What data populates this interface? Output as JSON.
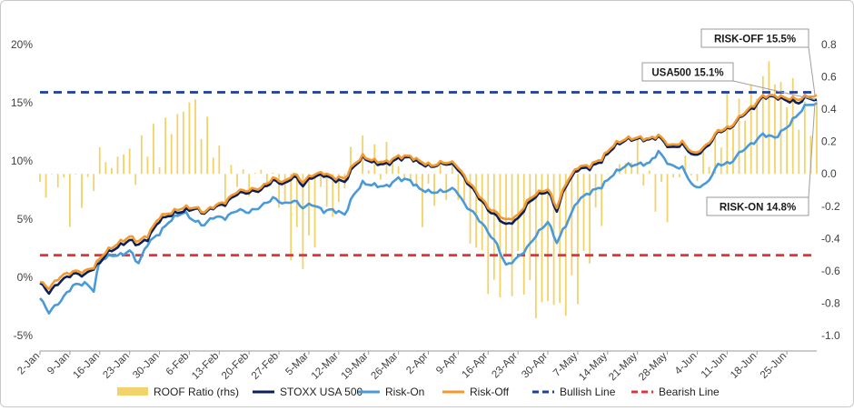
{
  "chart_data": {
    "type": "line",
    "title": "",
    "xlabel": "",
    "ylabel": "",
    "ylabel_right": "",
    "ylim_left": [
      -5,
      20
    ],
    "ylim_right": [
      -1.0,
      0.8
    ],
    "y_ticks_left": [
      "-5%",
      "0%",
      "5%",
      "10%",
      "15%",
      "20%"
    ],
    "y_ticks_right": [
      "-1.0",
      "-0.8",
      "-0.6",
      "-0.4",
      "-0.2",
      "0.0",
      "0.2",
      "0.4",
      "0.6",
      "0.8"
    ],
    "x_tick_labels": [
      "2-Jan",
      "9-Jan",
      "16-Jan",
      "23-Jan",
      "30-Jan",
      "6-Feb",
      "13-Feb",
      "20-Feb",
      "27-Feb",
      "5-Mar",
      "12-Mar",
      "19-Mar",
      "26-Mar",
      "2-Apr",
      "9-Apr",
      "16-Apr",
      "23-Apr",
      "30-Apr",
      "7-May",
      "14-May",
      "21-May",
      "28-May",
      "4-Jun",
      "11-Jun",
      "18-Jun",
      "25-Jun"
    ],
    "grid": false,
    "legend_position": "bottom",
    "series": [
      {
        "name": "ROOF Ratio (rhs)",
        "kind": "bar",
        "axis": "right",
        "color": "#F2D26B"
      },
      {
        "name": "STOXX USA 500",
        "kind": "line",
        "axis": "left",
        "color": "#0B1F5C"
      },
      {
        "name": "Risk-On",
        "kind": "line",
        "axis": "left",
        "color": "#4A9AD8"
      },
      {
        "name": "Risk-Off",
        "kind": "line",
        "axis": "left",
        "color": "#F39A2E"
      },
      {
        "name": "Bullish Line",
        "kind": "hline",
        "axis": "left",
        "value": 15.9,
        "color": "#1F3F9E",
        "dash": true
      },
      {
        "name": "Bearish Line",
        "kind": "hline",
        "axis": "left",
        "value": 1.9,
        "color": "#E0343D",
        "dash": true
      }
    ],
    "anchors": {
      "stoxx": [
        [
          0,
          -0.5
        ],
        [
          3,
          -1.3
        ],
        [
          7,
          -0.3
        ],
        [
          11,
          0.3
        ],
        [
          15,
          0.2
        ],
        [
          18,
          0.8
        ],
        [
          20,
          1.2
        ],
        [
          22,
          2.0
        ],
        [
          26,
          2.6
        ],
        [
          30,
          3.2
        ],
        [
          33,
          2.8
        ],
        [
          36,
          3.3
        ],
        [
          40,
          4.9
        ],
        [
          44,
          5.4
        ],
        [
          48,
          5.7
        ],
        [
          52,
          5.9
        ],
        [
          55,
          5.5
        ],
        [
          58,
          6.0
        ],
        [
          62,
          6.3
        ],
        [
          66,
          7.2
        ],
        [
          70,
          7.3
        ],
        [
          74,
          7.5
        ],
        [
          78,
          8.3
        ],
        [
          82,
          8.0
        ],
        [
          85,
          8.7
        ],
        [
          88,
          7.9
        ],
        [
          91,
          8.6
        ],
        [
          95,
          8.8
        ],
        [
          98,
          8.4
        ],
        [
          102,
          8.2
        ],
        [
          105,
          9.5
        ],
        [
          108,
          10.3
        ],
        [
          112,
          9.8
        ],
        [
          116,
          9.7
        ],
        [
          120,
          10.2
        ],
        [
          124,
          10.3
        ],
        [
          127,
          9.8
        ],
        [
          131,
          9.5
        ],
        [
          135,
          9.8
        ],
        [
          139,
          9.6
        ],
        [
          142,
          8.5
        ],
        [
          146,
          7.2
        ],
        [
          150,
          5.8
        ],
        [
          153,
          5.2
        ],
        [
          156,
          4.5
        ],
        [
          160,
          5.0
        ],
        [
          163,
          6.2
        ],
        [
          166,
          7.0
        ],
        [
          170,
          7.4
        ],
        [
          173,
          5.7
        ],
        [
          176,
          7.9
        ],
        [
          180,
          9.3
        ],
        [
          184,
          9.4
        ],
        [
          188,
          10.0
        ],
        [
          192,
          11.2
        ],
        [
          196,
          11.8
        ],
        [
          200,
          11.9
        ],
        [
          204,
          11.8
        ],
        [
          207,
          12.1
        ],
        [
          211,
          11.1
        ],
        [
          215,
          11.4
        ],
        [
          219,
          10.4
        ],
        [
          223,
          11.1
        ],
        [
          227,
          12.5
        ],
        [
          231,
          12.8
        ],
        [
          235,
          13.9
        ],
        [
          239,
          14.6
        ],
        [
          242,
          15.5
        ],
        [
          246,
          15.5
        ],
        [
          250,
          15.2
        ],
        [
          254,
          15.0
        ],
        [
          257,
          15.5
        ],
        [
          260,
          15.1
        ]
      ],
      "riskon": [
        [
          0,
          -1.8
        ],
        [
          3,
          -3.0
        ],
        [
          7,
          -2.0
        ],
        [
          11,
          -0.7
        ],
        [
          15,
          -0.5
        ],
        [
          18,
          -1.1
        ],
        [
          20,
          1.5
        ],
        [
          24,
          1.9
        ],
        [
          27,
          1.9
        ],
        [
          30,
          2.3
        ],
        [
          33,
          1.2
        ],
        [
          36,
          2.9
        ],
        [
          40,
          3.8
        ],
        [
          44,
          5.0
        ],
        [
          48,
          5.6
        ],
        [
          52,
          4.8
        ],
        [
          55,
          4.5
        ],
        [
          58,
          5.2
        ],
        [
          62,
          5.1
        ],
        [
          66,
          5.8
        ],
        [
          70,
          5.6
        ],
        [
          74,
          6.1
        ],
        [
          78,
          6.8
        ],
        [
          82,
          6.3
        ],
        [
          85,
          6.6
        ],
        [
          88,
          6.0
        ],
        [
          91,
          6.3
        ],
        [
          95,
          5.7
        ],
        [
          98,
          5.8
        ],
        [
          102,
          5.4
        ],
        [
          105,
          7.1
        ],
        [
          108,
          8.1
        ],
        [
          112,
          7.9
        ],
        [
          116,
          7.8
        ],
        [
          120,
          8.5
        ],
        [
          124,
          8.3
        ],
        [
          127,
          7.6
        ],
        [
          131,
          7.3
        ],
        [
          135,
          7.4
        ],
        [
          139,
          7.6
        ],
        [
          142,
          6.3
        ],
        [
          146,
          5.3
        ],
        [
          150,
          3.9
        ],
        [
          153,
          2.8
        ],
        [
          156,
          1.0
        ],
        [
          160,
          1.7
        ],
        [
          163,
          2.5
        ],
        [
          166,
          3.6
        ],
        [
          170,
          4.8
        ],
        [
          173,
          3.0
        ],
        [
          176,
          4.5
        ],
        [
          180,
          6.6
        ],
        [
          184,
          7.3
        ],
        [
          188,
          7.8
        ],
        [
          192,
          8.9
        ],
        [
          196,
          9.6
        ],
        [
          200,
          9.7
        ],
        [
          204,
          9.8
        ],
        [
          207,
          10.8
        ],
        [
          211,
          9.6
        ],
        [
          215,
          9.4
        ],
        [
          219,
          7.7
        ],
        [
          223,
          8.0
        ],
        [
          227,
          9.7
        ],
        [
          231,
          9.8
        ],
        [
          235,
          10.9
        ],
        [
          239,
          11.6
        ],
        [
          242,
          12.3
        ],
        [
          246,
          12.0
        ],
        [
          250,
          12.9
        ],
        [
          254,
          14.1
        ],
        [
          257,
          14.9
        ],
        [
          260,
          14.8
        ]
      ],
      "riskoff": [
        [
          0,
          -0.4
        ],
        [
          3,
          -0.9
        ],
        [
          7,
          0.1
        ],
        [
          11,
          0.5
        ],
        [
          15,
          0.5
        ],
        [
          18,
          0.9
        ],
        [
          20,
          1.6
        ],
        [
          22,
          2.2
        ],
        [
          26,
          2.9
        ],
        [
          30,
          3.5
        ],
        [
          33,
          3.1
        ],
        [
          36,
          3.6
        ],
        [
          40,
          5.2
        ],
        [
          44,
          5.6
        ],
        [
          48,
          6.0
        ],
        [
          52,
          6.0
        ],
        [
          55,
          5.6
        ],
        [
          58,
          6.1
        ],
        [
          62,
          6.5
        ],
        [
          66,
          7.4
        ],
        [
          70,
          7.5
        ],
        [
          74,
          7.7
        ],
        [
          78,
          8.5
        ],
        [
          82,
          8.2
        ],
        [
          85,
          8.9
        ],
        [
          88,
          8.2
        ],
        [
          91,
          8.8
        ],
        [
          95,
          9.0
        ],
        [
          98,
          8.6
        ],
        [
          102,
          8.5
        ],
        [
          105,
          9.7
        ],
        [
          108,
          10.4
        ],
        [
          112,
          10.0
        ],
        [
          116,
          9.9
        ],
        [
          120,
          10.4
        ],
        [
          124,
          10.4
        ],
        [
          127,
          10.0
        ],
        [
          131,
          9.6
        ],
        [
          135,
          9.9
        ],
        [
          139,
          9.8
        ],
        [
          142,
          8.7
        ],
        [
          146,
          7.4
        ],
        [
          150,
          6.0
        ],
        [
          153,
          5.5
        ],
        [
          156,
          4.9
        ],
        [
          160,
          5.3
        ],
        [
          163,
          6.5
        ],
        [
          166,
          7.2
        ],
        [
          170,
          7.6
        ],
        [
          173,
          6.0
        ],
        [
          176,
          8.1
        ],
        [
          180,
          9.5
        ],
        [
          184,
          9.6
        ],
        [
          188,
          10.2
        ],
        [
          192,
          11.4
        ],
        [
          196,
          11.9
        ],
        [
          200,
          12.0
        ],
        [
          204,
          11.9
        ],
        [
          207,
          12.2
        ],
        [
          211,
          11.3
        ],
        [
          215,
          11.6
        ],
        [
          219,
          10.6
        ],
        [
          223,
          11.3
        ],
        [
          227,
          12.6
        ],
        [
          231,
          12.9
        ],
        [
          235,
          14.0
        ],
        [
          239,
          14.8
        ],
        [
          242,
          15.6
        ],
        [
          246,
          15.6
        ],
        [
          250,
          15.4
        ],
        [
          254,
          15.3
        ],
        [
          257,
          15.6
        ],
        [
          260,
          15.5
        ]
      ],
      "roof": [
        [
          0,
          -0.05
        ],
        [
          3,
          -0.08
        ],
        [
          6,
          -0.02
        ],
        [
          10,
          -0.15
        ],
        [
          13,
          -0.1
        ],
        [
          16,
          -0.05
        ],
        [
          19,
          0.1
        ],
        [
          22,
          0.15
        ],
        [
          25,
          0.12
        ],
        [
          28,
          0.2
        ],
        [
          31,
          0.12
        ],
        [
          34,
          0.18
        ],
        [
          37,
          0.3
        ],
        [
          40,
          0.25
        ],
        [
          43,
          0.32
        ],
        [
          46,
          0.43
        ],
        [
          49,
          0.5
        ],
        [
          52,
          0.46
        ],
        [
          55,
          0.35
        ],
        [
          58,
          0.22
        ],
        [
          61,
          0.05
        ],
        [
          64,
          -0.04
        ],
        [
          67,
          0.03
        ],
        [
          70,
          -0.05
        ],
        [
          73,
          -0.02
        ],
        [
          76,
          0.02
        ],
        [
          79,
          -0.1
        ],
        [
          82,
          -0.3
        ],
        [
          85,
          -0.45
        ],
        [
          88,
          -0.55
        ],
        [
          91,
          -0.48
        ],
        [
          94,
          -0.2
        ],
        [
          97,
          -0.3
        ],
        [
          100,
          -0.25
        ],
        [
          103,
          -0.05
        ],
        [
          106,
          0.08
        ],
        [
          109,
          0.05
        ],
        [
          112,
          0.0
        ],
        [
          115,
          0.05
        ],
        [
          118,
          0.02
        ],
        [
          121,
          -0.05
        ],
        [
          124,
          -0.1
        ],
        [
          127,
          -0.3
        ],
        [
          130,
          -0.2
        ],
        [
          133,
          -0.15
        ],
        [
          136,
          -0.05
        ],
        [
          139,
          -0.1
        ],
        [
          142,
          -0.25
        ],
        [
          145,
          -0.45
        ],
        [
          148,
          -0.55
        ],
        [
          151,
          -0.72
        ],
        [
          154,
          -0.68
        ],
        [
          157,
          -0.6
        ],
        [
          160,
          -0.55
        ],
        [
          163,
          -0.7
        ],
        [
          166,
          -0.75
        ],
        [
          169,
          -0.8
        ],
        [
          172,
          -0.72
        ],
        [
          175,
          -0.78
        ],
        [
          178,
          -0.7
        ],
        [
          181,
          -0.55
        ],
        [
          184,
          -0.4
        ],
        [
          187,
          -0.2
        ],
        [
          190,
          0.02
        ],
        [
          193,
          0.1
        ],
        [
          196,
          0.15
        ],
        [
          199,
          0.2
        ],
        [
          202,
          0.1
        ],
        [
          205,
          -0.05
        ],
        [
          208,
          -0.15
        ],
        [
          211,
          -0.1
        ],
        [
          214,
          0.05
        ],
        [
          217,
          0.1
        ],
        [
          220,
          0.0
        ],
        [
          223,
          0.1
        ],
        [
          226,
          0.18
        ],
        [
          229,
          0.3
        ],
        [
          232,
          0.4
        ],
        [
          235,
          0.35
        ],
        [
          238,
          0.42
        ],
        [
          241,
          0.55
        ],
        [
          244,
          0.6
        ],
        [
          247,
          0.5
        ],
        [
          250,
          0.45
        ],
        [
          253,
          0.35
        ],
        [
          256,
          0.3
        ],
        [
          259,
          0.25
        ]
      ]
    },
    "callouts": [
      {
        "label": "RISK-OFF 15.5%",
        "series": "Risk-Off"
      },
      {
        "label": "USA500 15.1%",
        "series": "STOXX USA 500"
      },
      {
        "label": "RISK-ON 14.8%",
        "series": "Risk-On"
      }
    ]
  }
}
